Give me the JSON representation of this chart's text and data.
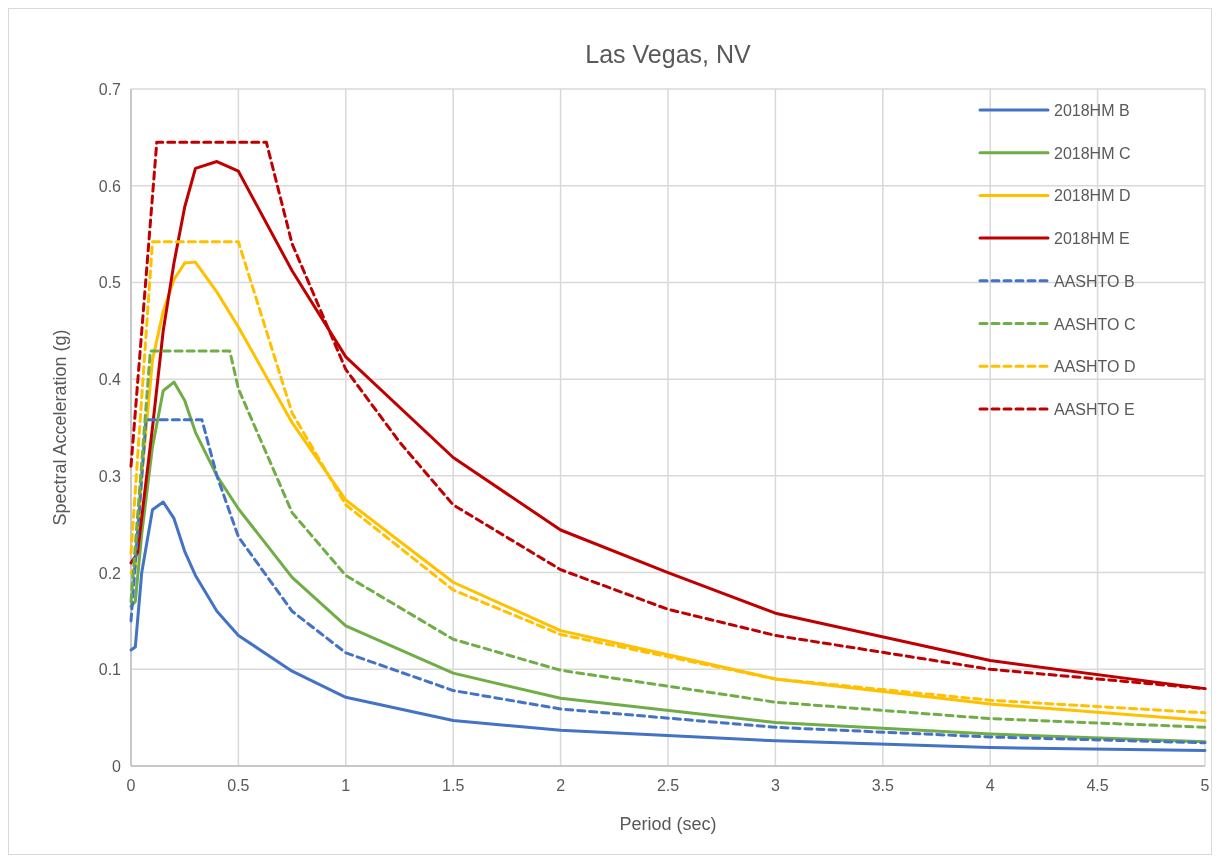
{
  "chart_data": {
    "type": "line",
    "title": "Las Vegas, NV",
    "xlabel": "Period (sec)",
    "ylabel": "Spectral Acceleration (g)",
    "xlim": [
      0,
      5
    ],
    "ylim": [
      0,
      0.7
    ],
    "xticks": [
      0,
      0.5,
      1,
      1.5,
      2,
      2.5,
      3,
      3.5,
      4,
      4.5,
      5
    ],
    "yticks": [
      0,
      0.1,
      0.2,
      0.3,
      0.4,
      0.5,
      0.6,
      0.7
    ],
    "grid": true,
    "legend": "top right",
    "marker": "none",
    "series": [
      {
        "name": "2018HM B",
        "color": "#4472c4",
        "line_style": "solid",
        "x": [
          0,
          0.02,
          0.05,
          0.1,
          0.15,
          0.2,
          0.25,
          0.3,
          0.4,
          0.5,
          0.75,
          1,
          1.5,
          2,
          3,
          4,
          5
        ],
        "values": [
          0.12,
          0.123,
          0.2,
          0.265,
          0.273,
          0.256,
          0.222,
          0.197,
          0.16,
          0.135,
          0.098,
          0.071,
          0.047,
          0.037,
          0.026,
          0.019,
          0.016
        ]
      },
      {
        "name": "2018HM C",
        "color": "#70ad47",
        "line_style": "solid",
        "x": [
          0,
          0.02,
          0.05,
          0.1,
          0.15,
          0.2,
          0.25,
          0.3,
          0.4,
          0.5,
          0.75,
          1,
          1.5,
          2,
          3,
          4,
          5
        ],
        "values": [
          0.165,
          0.17,
          0.24,
          0.33,
          0.388,
          0.397,
          0.378,
          0.345,
          0.3,
          0.266,
          0.195,
          0.145,
          0.096,
          0.07,
          0.045,
          0.033,
          0.025
        ]
      },
      {
        "name": "2018HM D",
        "color": "#ffc000",
        "line_style": "solid",
        "x": [
          0,
          0.02,
          0.05,
          0.1,
          0.15,
          0.2,
          0.25,
          0.3,
          0.4,
          0.5,
          0.75,
          1,
          1.5,
          2,
          2.5,
          3,
          4,
          5
        ],
        "values": [
          0.2,
          0.205,
          0.3,
          0.42,
          0.47,
          0.503,
          0.52,
          0.521,
          0.49,
          0.454,
          0.355,
          0.275,
          0.19,
          0.14,
          0.115,
          0.09,
          0.064,
          0.047
        ]
      },
      {
        "name": "2018HM E",
        "color": "#c00000",
        "line_style": "solid",
        "x": [
          0,
          0.03,
          0.1,
          0.15,
          0.2,
          0.25,
          0.3,
          0.4,
          0.5,
          0.75,
          1,
          1.5,
          2,
          2.5,
          3,
          4,
          5
        ],
        "values": [
          0.21,
          0.22,
          0.35,
          0.45,
          0.52,
          0.578,
          0.618,
          0.625,
          0.615,
          0.512,
          0.423,
          0.319,
          0.244,
          0.2,
          0.158,
          0.109,
          0.08
        ]
      },
      {
        "name": "AASHTO B",
        "color": "#4472c4",
        "line_style": "dashed",
        "x": [
          0,
          0.07,
          0.33,
          0.4,
          0.5,
          0.75,
          1,
          1.5,
          2,
          3,
          4,
          5
        ],
        "values": [
          0.15,
          0.358,
          0.358,
          0.3,
          0.237,
          0.16,
          0.117,
          0.078,
          0.059,
          0.04,
          0.03,
          0.024
        ]
      },
      {
        "name": "AASHTO C",
        "color": "#70ad47",
        "line_style": "dashed",
        "x": [
          0,
          0.09,
          0.46,
          0.5,
          0.75,
          1,
          1.5,
          2,
          3,
          4,
          5
        ],
        "values": [
          0.17,
          0.429,
          0.429,
          0.39,
          0.262,
          0.197,
          0.131,
          0.099,
          0.066,
          0.049,
          0.04
        ]
      },
      {
        "name": "AASHTO D",
        "color": "#ffc000",
        "line_style": "dashed",
        "x": [
          0,
          0.1,
          0.5,
          0.75,
          1,
          1.5,
          2,
          3,
          4,
          5
        ],
        "values": [
          0.22,
          0.542,
          0.542,
          0.365,
          0.27,
          0.182,
          0.136,
          0.09,
          0.068,
          0.055
        ]
      },
      {
        "name": "AASHTO E",
        "color": "#c00000",
        "line_style": "dashed",
        "x": [
          0,
          0.12,
          0.63,
          0.75,
          1,
          1.25,
          1.5,
          2,
          2.5,
          3,
          4,
          5
        ],
        "values": [
          0.31,
          0.645,
          0.645,
          0.54,
          0.41,
          0.335,
          0.27,
          0.203,
          0.162,
          0.135,
          0.1,
          0.08
        ]
      }
    ]
  }
}
